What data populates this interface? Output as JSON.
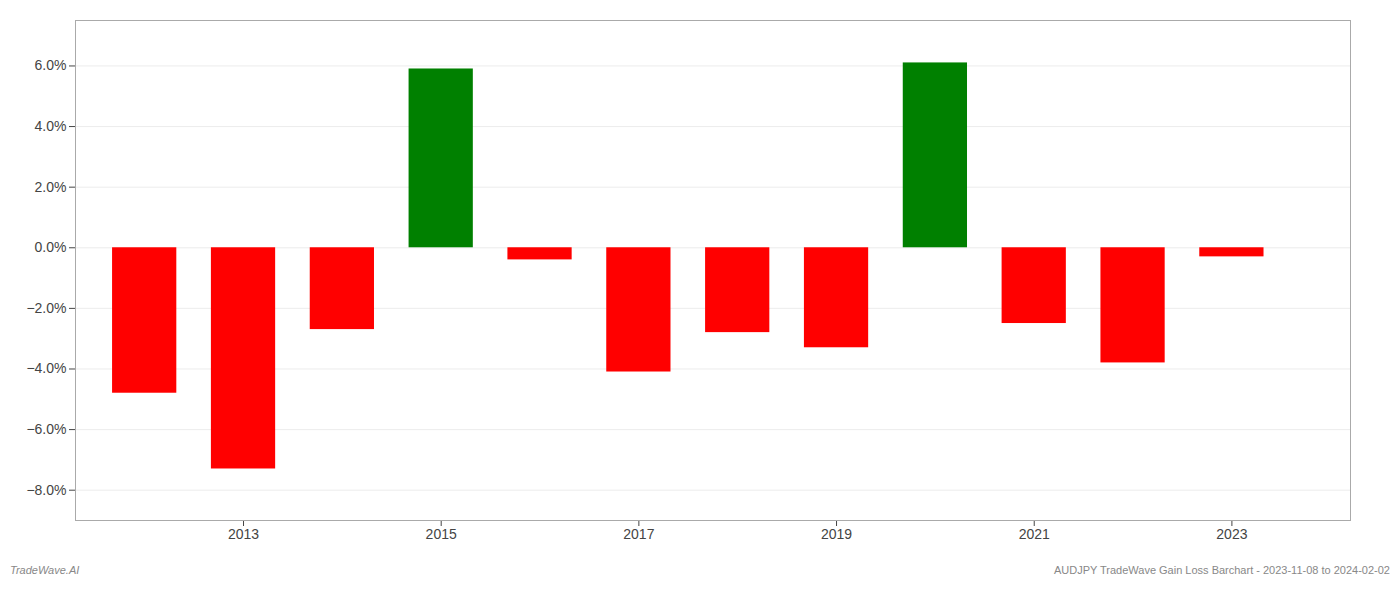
{
  "chart_data": {
    "type": "bar",
    "x": [
      2012,
      2013,
      2014,
      2015,
      2016,
      2017,
      2018,
      2019,
      2020,
      2021,
      2022,
      2023
    ],
    "values": [
      -0.048,
      -0.073,
      -0.027,
      0.059,
      -0.004,
      -0.041,
      -0.028,
      -0.033,
      0.061,
      -0.025,
      -0.038,
      -0.003
    ],
    "colors": [
      "#ff0000",
      "#ff0000",
      "#ff0000",
      "#008000",
      "#ff0000",
      "#ff0000",
      "#ff0000",
      "#ff0000",
      "#008000",
      "#ff0000",
      "#ff0000",
      "#ff0000"
    ],
    "xlim": [
      2011.3,
      2024.2
    ],
    "xticks": [
      2013,
      2015,
      2017,
      2019,
      2021,
      2023
    ],
    "ylim": [
      -0.09,
      0.075
    ],
    "yticks": [
      {
        "value": -0.08,
        "label": "−8.0%"
      },
      {
        "value": -0.06,
        "label": "−6.0%"
      },
      {
        "value": -0.04,
        "label": "−4.0%"
      },
      {
        "value": -0.02,
        "label": "−2.0%"
      },
      {
        "value": 0.0,
        "label": "0.0%"
      },
      {
        "value": 0.02,
        "label": "2.0%"
      },
      {
        "value": 0.04,
        "label": "4.0%"
      },
      {
        "value": 0.06,
        "label": "6.0%"
      }
    ],
    "grid": true,
    "annotations": [
      "TradeWave.AI",
      "AUDJPY TradeWave Gain Loss Barchart - 2023-11-08 to 2024-02-02"
    ]
  }
}
